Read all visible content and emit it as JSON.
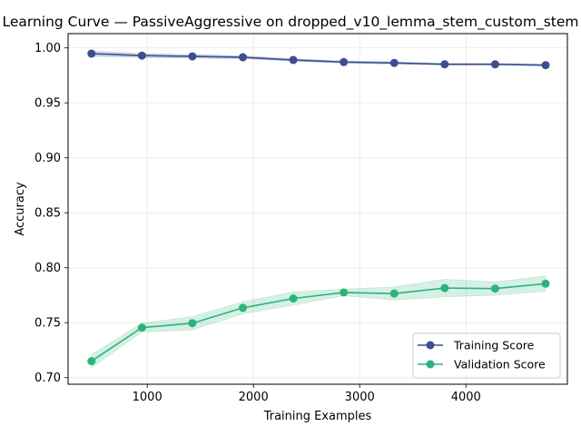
{
  "chart_data": {
    "type": "line",
    "title": "Learning Curve — PassiveAggressive on dropped_v10_lemma_stem_custom_stem",
    "xlabel": "Training Examples",
    "ylabel": "Accuracy",
    "xlim": [
      255,
      4955
    ],
    "ylim": [
      0.694,
      1.013
    ],
    "xticks": [
      1000,
      2000,
      3000,
      4000
    ],
    "xtick_labels": [
      "1000",
      "2000",
      "3000",
      "4000"
    ],
    "yticks": [
      0.7,
      0.75,
      0.8,
      0.85,
      0.9,
      0.95,
      1.0
    ],
    "ytick_labels": [
      "0.70",
      "0.75",
      "0.80",
      "0.85",
      "0.90",
      "0.95",
      "1.00"
    ],
    "grid": true,
    "legend_position": "lower-right",
    "x": [
      475,
      950,
      1425,
      1900,
      2375,
      2850,
      3325,
      3800,
      4275,
      4750
    ],
    "series": [
      {
        "name": "Training Score",
        "color": "#3b4f8f",
        "values": [
          0.9948,
          0.993,
          0.9923,
          0.9915,
          0.989,
          0.9871,
          0.9863,
          0.9851,
          0.9851,
          0.9843
        ],
        "band_lower": [
          0.9925,
          0.9912,
          0.9907,
          0.9902,
          0.9879,
          0.9861,
          0.9853,
          0.9843,
          0.9843,
          0.9835
        ],
        "band_upper": [
          0.9971,
          0.9948,
          0.9939,
          0.9928,
          0.9901,
          0.9881,
          0.9873,
          0.9859,
          0.9859,
          0.9851
        ]
      },
      {
        "name": "Validation Score",
        "color": "#2db37a",
        "values": [
          0.715,
          0.7455,
          0.7495,
          0.7635,
          0.772,
          0.7775,
          0.7765,
          0.7815,
          0.781,
          0.7855
        ],
        "band_lower": [
          0.709,
          0.7415,
          0.7435,
          0.758,
          0.766,
          0.7745,
          0.7705,
          0.7735,
          0.775,
          0.7785
        ],
        "band_upper": [
          0.721,
          0.7495,
          0.7555,
          0.769,
          0.778,
          0.7805,
          0.7825,
          0.7895,
          0.787,
          0.7925
        ]
      }
    ]
  }
}
